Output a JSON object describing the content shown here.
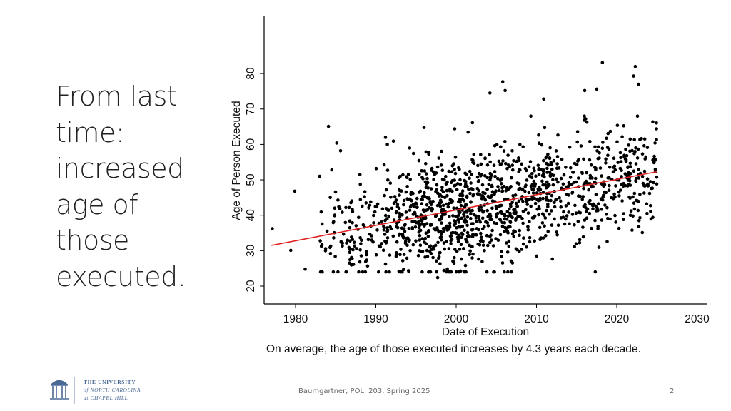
{
  "slide": {
    "title_lines": [
      "From last",
      "time:",
      "increased",
      "age of",
      "those",
      "executed."
    ],
    "footer": "Baumgartner, POLI 203, Spring 2025",
    "page_number": "2",
    "logo": {
      "lines": [
        "THE UNIVERSITY",
        "of NORTH CAROLINA",
        "at CHAPEL HILL"
      ],
      "icon": "old-well-icon",
      "color": "#4a6a96"
    }
  },
  "chart_data": {
    "type": "scatter",
    "title": "",
    "xlabel": "Date of Execution",
    "ylabel": "Age of Person Executed",
    "caption": "On average, the age of those executed increases by 4.3 years each decade.",
    "xlim": [
      1976,
      2031
    ],
    "ylim": [
      18,
      95
    ],
    "xticks": [
      1980,
      1990,
      2000,
      2010,
      2020,
      2030
    ],
    "yticks": [
      20,
      30,
      40,
      50,
      60,
      70,
      80
    ],
    "grid": false,
    "point_color": "#000000",
    "trend_color": "#e02020",
    "trend_line": {
      "x": [
        1977,
        2025
      ],
      "y": [
        31.5,
        52.3
      ]
    },
    "points_note_approx": true,
    "highlight_points": [
      {
        "x": 1977.1,
        "y": 36.2
      },
      {
        "x": 1979.4,
        "y": 30.1
      },
      {
        "x": 1979.9,
        "y": 46.8
      },
      {
        "x": 1981.2,
        "y": 24.8
      },
      {
        "x": 1984.1,
        "y": 65.1
      },
      {
        "x": 1985.6,
        "y": 58.2
      },
      {
        "x": 1991.2,
        "y": 62.0
      },
      {
        "x": 1994.2,
        "y": 59.0
      },
      {
        "x": 1996.0,
        "y": 64.8
      },
      {
        "x": 1997.7,
        "y": 22.4
      },
      {
        "x": 2004.2,
        "y": 74.5
      },
      {
        "x": 2005.8,
        "y": 77.7
      },
      {
        "x": 2006.1,
        "y": 75.2
      },
      {
        "x": 2010.9,
        "y": 72.8
      },
      {
        "x": 2016.0,
        "y": 75.2
      },
      {
        "x": 2017.5,
        "y": 75.6
      },
      {
        "x": 2018.2,
        "y": 83.1
      },
      {
        "x": 2022.1,
        "y": 79.3
      },
      {
        "x": 2022.3,
        "y": 82.0
      },
      {
        "x": 2022.7,
        "y": 77.0
      },
      {
        "x": 2021.9,
        "y": 35.8
      }
    ],
    "generated_cloud": {
      "count": 1350,
      "x_range": [
        1983,
        2025
      ],
      "x_peak": 2000,
      "y_trend": {
        "x": [
          1977,
          2025
        ],
        "y": [
          31.5,
          52.3
        ]
      },
      "y_spread": 8.2,
      "y_clip": [
        24,
        68
      ]
    }
  }
}
